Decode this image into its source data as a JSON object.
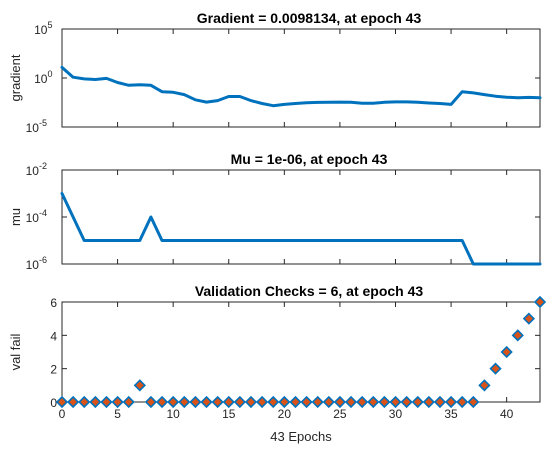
{
  "colors": {
    "line": "#0072BD",
    "marker_fill": "#D95319",
    "marker_edge": "#0072BD",
    "axis": "#262626"
  },
  "chart_data": [
    {
      "type": "line",
      "title": "Gradient = 0.0098134, at epoch 43",
      "ylabel": "gradient",
      "xlabel": "",
      "yscale": "log",
      "ylim": [
        1e-05,
        100000.0
      ],
      "xlim": [
        0,
        43
      ],
      "yticks": [
        {
          "value": 100000.0,
          "base": "10",
          "exp": "5"
        },
        {
          "value": 1,
          "base": "10",
          "exp": "0"
        },
        {
          "value": 1e-05,
          "base": "10",
          "exp": "-5"
        }
      ],
      "series": [
        {
          "x": [
            0,
            1,
            2,
            3,
            4,
            5,
            6,
            7,
            8,
            9,
            10,
            11,
            12,
            13,
            14,
            15,
            16,
            17,
            18,
            19,
            20,
            21,
            22,
            23,
            24,
            25,
            26,
            27,
            28,
            29,
            30,
            31,
            32,
            33,
            34,
            35,
            36,
            37,
            38,
            39,
            40,
            41,
            42,
            43
          ],
          "y": [
            12,
            1.2,
            0.8,
            0.7,
            0.9,
            0.35,
            0.18,
            0.2,
            0.18,
            0.04,
            0.035,
            0.02,
            0.006,
            0.0035,
            0.005,
            0.013,
            0.013,
            0.005,
            0.0025,
            0.0015,
            0.002,
            0.0025,
            0.003,
            0.0032,
            0.0034,
            0.0035,
            0.0033,
            0.0026,
            0.0027,
            0.0033,
            0.0036,
            0.0036,
            0.0033,
            0.0028,
            0.0025,
            0.002,
            0.04,
            0.03,
            0.02,
            0.014,
            0.011,
            0.0095,
            0.0105,
            0.0098134
          ]
        }
      ]
    },
    {
      "type": "line",
      "title": "Mu = 1e-06, at epoch 43",
      "ylabel": "mu",
      "xlabel": "",
      "yscale": "log",
      "ylim": [
        1e-06,
        0.01
      ],
      "xlim": [
        0,
        43
      ],
      "yticks": [
        {
          "value": 0.01,
          "base": "10",
          "exp": "-2"
        },
        {
          "value": 0.0001,
          "base": "10",
          "exp": "-4"
        },
        {
          "value": 1e-06,
          "base": "10",
          "exp": "-6"
        }
      ],
      "series": [
        {
          "x": [
            0,
            1,
            2,
            3,
            4,
            5,
            6,
            7,
            8,
            9,
            10,
            11,
            12,
            13,
            14,
            15,
            16,
            17,
            18,
            19,
            20,
            21,
            22,
            23,
            24,
            25,
            26,
            27,
            28,
            29,
            30,
            31,
            32,
            33,
            34,
            35,
            36,
            37,
            38,
            39,
            40,
            41,
            42,
            43
          ],
          "y": [
            0.001,
            0.0001,
            1e-05,
            1e-05,
            1e-05,
            1e-05,
            1e-05,
            1e-05,
            0.0001,
            1e-05,
            1e-05,
            1e-05,
            1e-05,
            1e-05,
            1e-05,
            1e-05,
            1e-05,
            1e-05,
            1e-05,
            1e-05,
            1e-05,
            1e-05,
            1e-05,
            1e-05,
            1e-05,
            1e-05,
            1e-05,
            1e-05,
            1e-05,
            1e-05,
            1e-05,
            1e-05,
            1e-05,
            1e-05,
            1e-05,
            1e-05,
            1e-05,
            1e-06,
            1e-06,
            1e-06,
            1e-06,
            1e-06,
            1e-06,
            1e-06
          ]
        }
      ]
    },
    {
      "type": "scatter",
      "title": "Validation Checks = 6, at epoch 43",
      "ylabel": "val fail",
      "xlabel": "43 Epochs",
      "yscale": "linear",
      "ylim": [
        0,
        6
      ],
      "xlim": [
        0,
        43
      ],
      "yticks": [
        {
          "value": 0,
          "label": "0"
        },
        {
          "value": 2,
          "label": "2"
        },
        {
          "value": 4,
          "label": "4"
        },
        {
          "value": 6,
          "label": "6"
        }
      ],
      "xticks": [
        "0",
        "5",
        "10",
        "15",
        "20",
        "25",
        "30",
        "35",
        "40"
      ],
      "series": [
        {
          "x": [
            0,
            1,
            2,
            3,
            4,
            5,
            6,
            7,
            8,
            9,
            10,
            11,
            12,
            13,
            14,
            15,
            16,
            17,
            18,
            19,
            20,
            21,
            22,
            23,
            24,
            25,
            26,
            27,
            28,
            29,
            30,
            31,
            32,
            33,
            34,
            35,
            36,
            37,
            38,
            39,
            40,
            41,
            42,
            43
          ],
          "y": [
            0,
            0,
            0,
            0,
            0,
            0,
            0,
            1,
            0,
            0,
            0,
            0,
            0,
            0,
            0,
            0,
            0,
            0,
            0,
            0,
            0,
            0,
            0,
            0,
            0,
            0,
            0,
            0,
            0,
            0,
            0,
            0,
            0,
            0,
            0,
            0,
            0,
            0,
            1,
            2,
            3,
            4,
            5,
            6
          ]
        }
      ]
    }
  ]
}
